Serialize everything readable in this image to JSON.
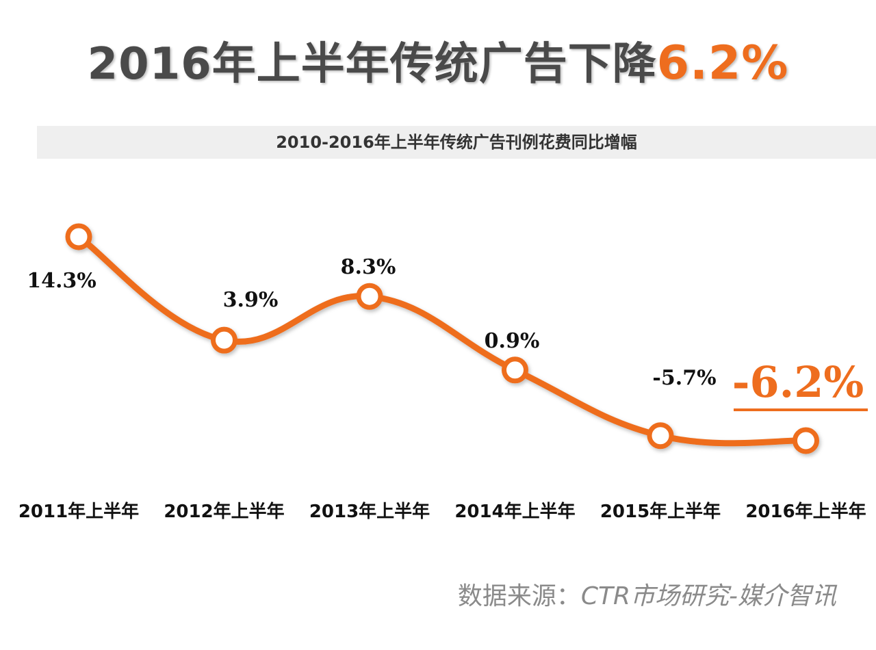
{
  "title": {
    "text": "2016年上半年传统广告下降",
    "highlight": "6.2%"
  },
  "colors": {
    "accent": "#ee6d1e",
    "title": "#4a4a4a",
    "bar": "#efefef",
    "source": "#8a8a8a"
  },
  "chart_data": {
    "type": "line",
    "title": "2010-2016年上半年传统广告刊例花费同比增幅",
    "xlabel": "",
    "ylabel": "",
    "categories": [
      "2011年上半年",
      "2012年上半年",
      "2013年上半年",
      "2014年上半年",
      "2015年上半年",
      "2016年上半年"
    ],
    "values": [
      14.3,
      3.9,
      8.3,
      0.9,
      -5.7,
      -6.2
    ],
    "data_labels": [
      "14.3%",
      "3.9%",
      "8.3%",
      "0.9%",
      "-5.7%",
      "-6.2%"
    ],
    "emphasized_label": "-6.2%",
    "grid": false,
    "legend": "none"
  },
  "source": {
    "label": "数据来源：",
    "text": "CTR市场研究-媒介智讯"
  }
}
